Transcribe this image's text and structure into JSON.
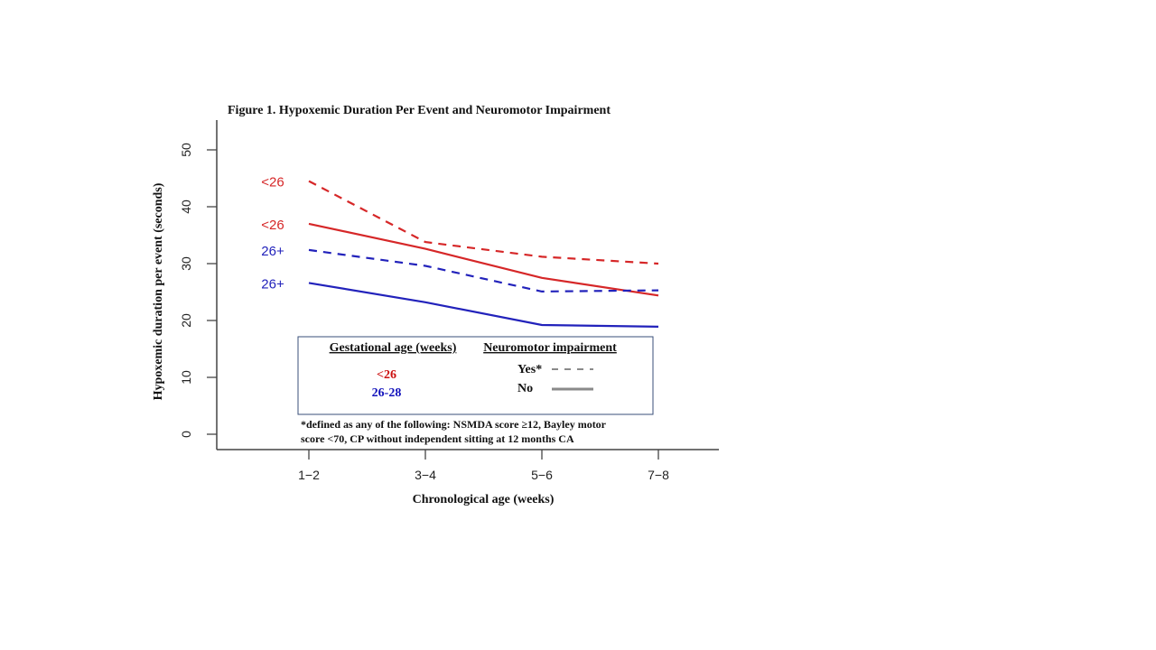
{
  "chart_data": {
    "type": "line",
    "title": "Figure 1. Hypoxemic Duration Per Event and Neuromotor Impairment",
    "xlabel": "Chronological  age (weeks)",
    "ylabel": "Hypoxemic duration  per event (seconds)",
    "categories": [
      "1−2",
      "3−4",
      "5−6",
      "7−8"
    ],
    "ylim": [
      0,
      50
    ],
    "yticks": [
      0,
      10,
      20,
      30,
      40,
      50
    ],
    "grid": false,
    "series": [
      {
        "name": "<26",
        "color": "#d62728",
        "dash": true,
        "values": [
          44.5,
          33.8,
          31.2,
          30.0
        ]
      },
      {
        "name": "<26",
        "color": "#d62728",
        "dash": false,
        "values": [
          37.0,
          32.6,
          27.5,
          24.4
        ]
      },
      {
        "name": "26+",
        "color": "#2222bb",
        "dash": true,
        "values": [
          32.4,
          29.6,
          25.1,
          25.3
        ]
      },
      {
        "name": "26+",
        "color": "#2222bb",
        "dash": false,
        "values": [
          26.6,
          23.2,
          19.2,
          18.9
        ]
      }
    ],
    "legend": {
      "placement": "bottom-center",
      "gestational_header": "Gestational age (weeks)",
      "neuromotor_header": "Neuromotor  impairment",
      "gestational_items": [
        {
          "label": "<26",
          "color": "#cc1111"
        },
        {
          "label": "26-28",
          "color": "#1111bb"
        }
      ],
      "neuromotor_items": [
        {
          "label": "Yes*",
          "dash": true
        },
        {
          "label": "No",
          "dash": false
        }
      ]
    },
    "footnote_lines": [
      "*defined  as any of the following:  NSMDA  score ≥12, Bayley motor",
      "score <70, CP without  independent  sitting at 12 months  CA"
    ]
  }
}
